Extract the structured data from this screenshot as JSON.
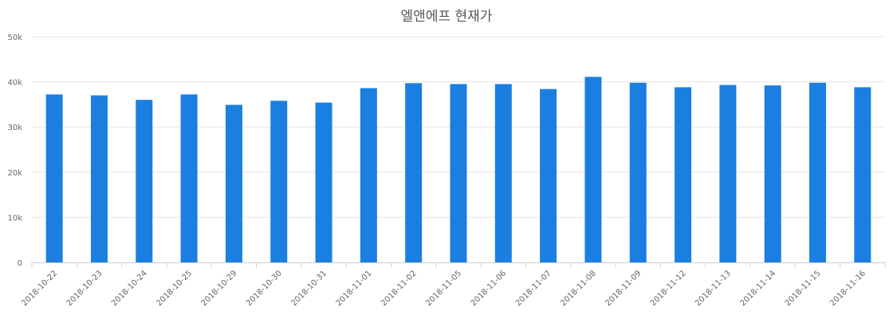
{
  "chart_data": {
    "type": "bar",
    "title": "엘앤에프 현재가",
    "xlabel": "",
    "ylabel": "",
    "categories": [
      "2018-10-22",
      "2018-10-23",
      "2018-10-24",
      "2018-10-25",
      "2018-10-29",
      "2018-10-30",
      "2018-10-31",
      "2018-11-01",
      "2018-11-02",
      "2018-11-05",
      "2018-11-06",
      "2018-11-07",
      "2018-11-08",
      "2018-11-09",
      "2018-11-12",
      "2018-11-13",
      "2018-11-14",
      "2018-11-15",
      "2018-11-16"
    ],
    "values": [
      37200,
      37000,
      36000,
      37200,
      34900,
      35800,
      35400,
      38600,
      39700,
      39500,
      39500,
      38400,
      41100,
      39800,
      38800,
      39300,
      39200,
      39800,
      38800
    ],
    "ylim": [
      0,
      50000
    ],
    "yticks": [
      0,
      10000,
      20000,
      30000,
      40000,
      50000
    ],
    "ytick_labels": [
      "0",
      "10k",
      "20k",
      "30k",
      "40k",
      "50k"
    ],
    "grid": true,
    "legend": "none",
    "bar_color": "#1a7fe0"
  }
}
